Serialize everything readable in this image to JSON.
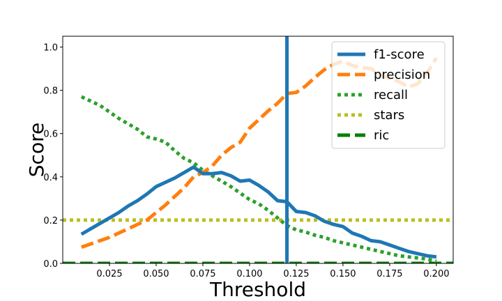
{
  "chart_data": {
    "type": "line",
    "xlabel": "Threshold",
    "ylabel": "Score",
    "xlim": [
      0.0,
      0.209
    ],
    "ylim": [
      0.0,
      1.05
    ],
    "xticks": [
      0.025,
      0.05,
      0.075,
      0.1,
      0.125,
      0.15,
      0.175,
      0.2
    ],
    "xtick_labels": [
      "0.025",
      "0.050",
      "0.075",
      "0.100",
      "0.125",
      "0.150",
      "0.175",
      "0.200"
    ],
    "yticks": [
      0.0,
      0.2,
      0.4,
      0.6,
      0.8,
      1.0
    ],
    "ytick_labels": [
      "0.0",
      "0.2",
      "0.4",
      "0.6",
      "0.8",
      "1.0"
    ],
    "grid": false,
    "legend_position": "top-right",
    "vline": {
      "x": 0.12,
      "color": "#1f77b4"
    },
    "series": [
      {
        "name": "f1-score",
        "color": "#1f77b4",
        "style": "solid",
        "x": [
          0.01,
          0.015,
          0.02,
          0.025,
          0.03,
          0.035,
          0.04,
          0.045,
          0.05,
          0.055,
          0.06,
          0.065,
          0.07,
          0.075,
          0.08,
          0.085,
          0.09,
          0.095,
          0.1,
          0.105,
          0.11,
          0.115,
          0.12,
          0.125,
          0.13,
          0.135,
          0.14,
          0.145,
          0.15,
          0.155,
          0.16,
          0.165,
          0.17,
          0.175,
          0.18,
          0.185,
          0.19,
          0.195,
          0.2
        ],
        "y": [
          0.135,
          0.16,
          0.185,
          0.21,
          0.235,
          0.265,
          0.29,
          0.32,
          0.355,
          0.375,
          0.395,
          0.42,
          0.445,
          0.415,
          0.415,
          0.42,
          0.405,
          0.38,
          0.385,
          0.36,
          0.33,
          0.29,
          0.285,
          0.24,
          0.235,
          0.22,
          0.195,
          0.18,
          0.17,
          0.14,
          0.125,
          0.105,
          0.1,
          0.085,
          0.07,
          0.055,
          0.045,
          0.035,
          0.03
        ]
      },
      {
        "name": "precision",
        "color": "#ff7f0e",
        "style": "dashed",
        "x": [
          0.01,
          0.015,
          0.02,
          0.025,
          0.03,
          0.035,
          0.04,
          0.045,
          0.05,
          0.055,
          0.06,
          0.065,
          0.07,
          0.075,
          0.08,
          0.085,
          0.09,
          0.095,
          0.1,
          0.105,
          0.11,
          0.115,
          0.12,
          0.125,
          0.13,
          0.135,
          0.14,
          0.145,
          0.15,
          0.155,
          0.16,
          0.165,
          0.17,
          0.175,
          0.18,
          0.185,
          0.19,
          0.195,
          0.2
        ],
        "y": [
          0.075,
          0.09,
          0.105,
          0.12,
          0.14,
          0.16,
          0.18,
          0.2,
          0.235,
          0.27,
          0.31,
          0.35,
          0.4,
          0.42,
          0.45,
          0.5,
          0.535,
          0.56,
          0.625,
          0.665,
          0.705,
          0.74,
          0.785,
          0.79,
          0.82,
          0.86,
          0.895,
          0.92,
          0.935,
          0.915,
          0.905,
          0.9,
          0.87,
          0.855,
          0.84,
          0.815,
          0.83,
          0.88,
          0.95
        ]
      },
      {
        "name": "recall",
        "color": "#2ca02c",
        "style": "dotted",
        "x": [
          0.01,
          0.015,
          0.02,
          0.025,
          0.03,
          0.035,
          0.04,
          0.045,
          0.05,
          0.055,
          0.06,
          0.065,
          0.07,
          0.075,
          0.08,
          0.085,
          0.09,
          0.095,
          0.1,
          0.105,
          0.11,
          0.115,
          0.12,
          0.125,
          0.13,
          0.135,
          0.14,
          0.145,
          0.15,
          0.155,
          0.16,
          0.165,
          0.17,
          0.175,
          0.18,
          0.185,
          0.19,
          0.195,
          0.2
        ],
        "y": [
          0.77,
          0.75,
          0.73,
          0.7,
          0.67,
          0.645,
          0.62,
          0.585,
          0.575,
          0.56,
          0.52,
          0.485,
          0.465,
          0.43,
          0.405,
          0.38,
          0.355,
          0.325,
          0.295,
          0.275,
          0.245,
          0.21,
          0.175,
          0.155,
          0.145,
          0.13,
          0.12,
          0.105,
          0.095,
          0.085,
          0.075,
          0.065,
          0.055,
          0.045,
          0.035,
          0.03,
          0.025,
          0.02,
          0.01
        ]
      },
      {
        "name": "stars",
        "color": "#bcbd22",
        "style": "dotted",
        "x": [
          0.0,
          0.209
        ],
        "y": [
          0.2,
          0.2
        ]
      },
      {
        "name": "ric",
        "color": "#007f00",
        "style": "dashed",
        "x": [
          0.0,
          0.209
        ],
        "y": [
          0.0,
          0.0
        ]
      }
    ]
  }
}
